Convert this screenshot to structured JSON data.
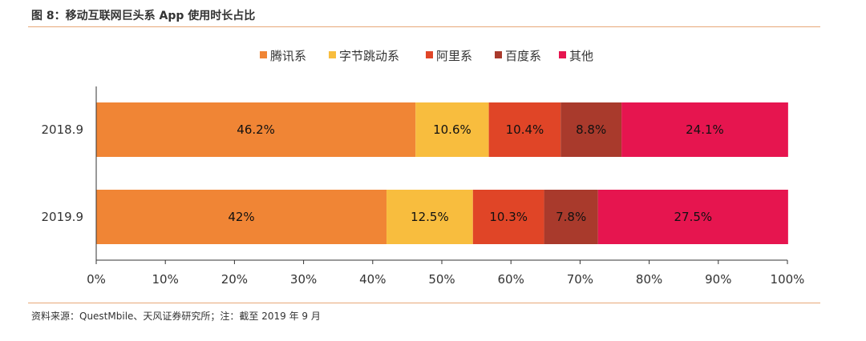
{
  "title": "图 8：移动互联网巨头系 App 使用时长占比",
  "source": "资料来源：QuestMbile、天风证券研究所；注：截至 2019 年 9 月",
  "chart_data": {
    "type": "bar",
    "orientation": "horizontal",
    "stacked": "percent",
    "categories": [
      "2018.9",
      "2019.9"
    ],
    "series": [
      {
        "name": "腾讯系",
        "color": "#f08535",
        "values": [
          46.2,
          42
        ],
        "labels": [
          "46.2%",
          "42%"
        ]
      },
      {
        "name": "字节跳动系",
        "color": "#f8bd3e",
        "values": [
          10.6,
          12.5
        ],
        "labels": [
          "10.6%",
          "12.5%"
        ]
      },
      {
        "name": "阿里系",
        "color": "#e04527",
        "values": [
          10.4,
          10.3
        ],
        "labels": [
          "10.4%",
          "10.3%"
        ]
      },
      {
        "name": "百度系",
        "color": "#a93a2c",
        "values": [
          8.8,
          7.8
        ],
        "labels": [
          "8.8%",
          "7.8%"
        ]
      },
      {
        "name": "其他",
        "color": "#e6154f",
        "values": [
          24.1,
          27.5
        ],
        "labels": [
          "24.1%",
          "27.5%"
        ]
      }
    ],
    "xlim": [
      0,
      100
    ],
    "xticks": [
      "0%",
      "10%",
      "20%",
      "30%",
      "40%",
      "50%",
      "60%",
      "70%",
      "80%",
      "90%",
      "100%"
    ],
    "grid": false,
    "legend": "top"
  }
}
